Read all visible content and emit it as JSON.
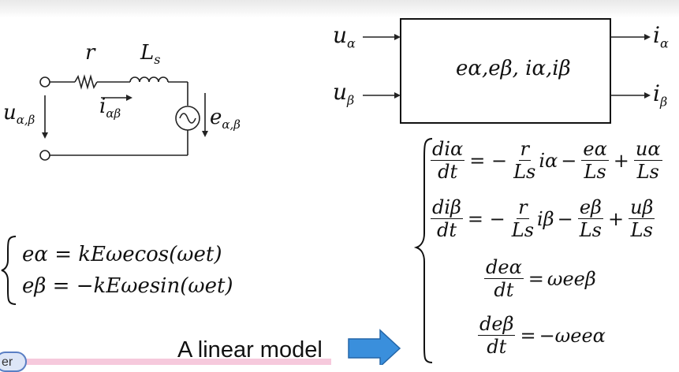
{
  "circuit": {
    "r": "r",
    "Ls": "L",
    "Ls_sub": "s",
    "u": "u",
    "u_sub": "α,β",
    "i": "i",
    "i_sub": "αβ",
    "e": "e",
    "e_sub": "α,β"
  },
  "block": {
    "input1": "u",
    "input1_sub": "α",
    "input2": "u",
    "input2_sub": "β",
    "output1": "i",
    "output1_sub": "α",
    "output2": "i",
    "output2_sub": "β",
    "content": "eα,eβ, iα,iβ"
  },
  "emf_equations": [
    "eα = kEωecos(ωet)",
    "eβ = −kEωesin(ωet)"
  ],
  "model_equations": {
    "eq1": {
      "lhs_num": "diα",
      "lhs_den": "dt",
      "t1_num": "r",
      "t1_den": "Ls",
      "t1_tail": "iα",
      "t2_num": "eα",
      "t2_den": "Ls",
      "t3_num": "uα",
      "t3_den": "Ls"
    },
    "eq2": {
      "lhs_num": "diβ",
      "lhs_den": "dt",
      "t1_num": "r",
      "t1_den": "Ls",
      "t1_tail": "iβ",
      "t2_num": "eβ",
      "t2_den": "Ls",
      "t3_num": "uβ",
      "t3_den": "Ls"
    },
    "eq3": {
      "lhs_num": "deα",
      "lhs_den": "dt",
      "rhs": "ωeeβ"
    },
    "eq4": {
      "lhs_num": "deβ",
      "lhs_den": "dt",
      "rhs": "−ωeeα"
    }
  },
  "caption": "A linear model",
  "corner_text": "er",
  "colors": {
    "arrow_fill": "#3a8fdc",
    "arrow_stroke": "#2466a8",
    "pink": "#f6c9dc"
  }
}
